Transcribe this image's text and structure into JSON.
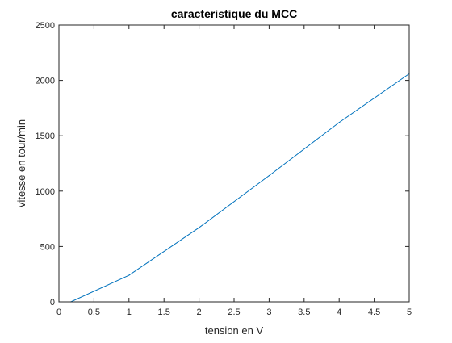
{
  "chart_data": {
    "type": "line",
    "title": "caracteristique du MCC",
    "xlabel": "tension en V",
    "ylabel": "vitesse en tour/min",
    "xlim": [
      0,
      5
    ],
    "ylim": [
      0,
      2500
    ],
    "xticks": [
      "0",
      "0.5",
      "1",
      "1.5",
      "2",
      "2.5",
      "3",
      "3.5",
      "4",
      "4.5",
      "5"
    ],
    "yticks": [
      "0",
      "500",
      "1000",
      "1500",
      "2000",
      "2500"
    ],
    "grid": false,
    "series": [
      {
        "color": "#0072BD",
        "x": [
          0,
          0.17,
          1,
          2,
          3,
          4,
          5
        ],
        "y": [
          0,
          0,
          240,
          670,
          1140,
          1620,
          2060
        ]
      }
    ]
  }
}
